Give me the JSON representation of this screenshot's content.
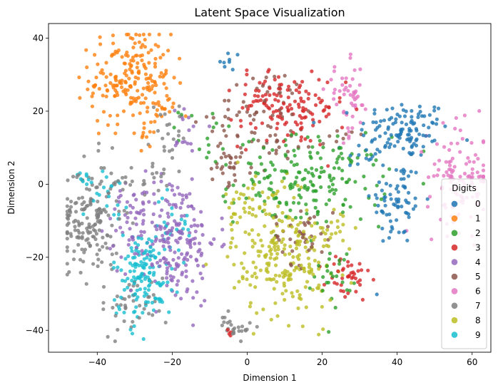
{
  "chart_data": {
    "type": "scatter",
    "title": "Latent Space Visualization",
    "xlabel": "Dimension 1",
    "ylabel": "Dimension 2",
    "xlim": [
      -53,
      65
    ],
    "ylim": [
      -46,
      44
    ],
    "xticks": [
      -40,
      -20,
      0,
      20,
      40,
      60
    ],
    "yticks": [
      -40,
      -20,
      0,
      20,
      40
    ],
    "xtick_labels": [
      "−40",
      "−20",
      "0",
      "20",
      "40",
      "60"
    ],
    "ytick_labels": [
      "−40",
      "−20",
      "0",
      "20",
      "40"
    ],
    "grid": false,
    "legend": {
      "title": "Digits",
      "placement": "lower-right"
    },
    "series": [
      {
        "name": "0",
        "color": "#1f77b4",
        "clusters": [
          {
            "cx": 42,
            "cy": 15,
            "sx": 6,
            "sy": 4,
            "n": 110
          },
          {
            "cx": 40,
            "cy": -5,
            "sx": 3.5,
            "sy": 6,
            "n": 70
          },
          {
            "cx": 32,
            "cy": 8,
            "sx": 3,
            "sy": 2,
            "n": 15
          },
          {
            "cx": -5,
            "cy": 33,
            "sx": 1.5,
            "sy": 2,
            "n": 8
          }
        ]
      },
      {
        "name": "1",
        "color": "#ff7f0e",
        "clusters": [
          {
            "cx": -31,
            "cy": 29,
            "sx": 5.5,
            "sy": 6.5,
            "n": 200
          },
          {
            "cx": -22,
            "cy": 20,
            "sx": 2,
            "sy": 1.2,
            "n": 10
          },
          {
            "cx": -27,
            "cy": 15,
            "sx": 1.5,
            "sy": 2.5,
            "n": 10
          }
        ]
      },
      {
        "name": "2",
        "color": "#2ca02c",
        "clusters": [
          {
            "cx": 17,
            "cy": 1,
            "sx": 10,
            "sy": 6,
            "n": 190
          },
          {
            "cx": 23,
            "cy": -25,
            "sx": 2.5,
            "sy": 4,
            "n": 25
          },
          {
            "cx": -10,
            "cy": 13,
            "sx": 4,
            "sy": 4,
            "n": 18
          }
        ]
      },
      {
        "name": "3",
        "color": "#d62728",
        "clusters": [
          {
            "cx": 12,
            "cy": 20,
            "sx": 7,
            "sy": 5,
            "n": 110
          },
          {
            "cx": 3,
            "cy": 24,
            "sx": 3,
            "sy": 3,
            "n": 30
          },
          {
            "cx": 27,
            "cy": -26,
            "sx": 3,
            "sy": 3.5,
            "n": 40
          },
          {
            "cx": -5,
            "cy": -40,
            "sx": 1,
            "sy": 0.8,
            "n": 4
          }
        ]
      },
      {
        "name": "4",
        "color": "#9467bd",
        "clusters": [
          {
            "cx": -20,
            "cy": -15,
            "sx": 6,
            "sy": 9,
            "n": 210
          },
          {
            "cx": -30,
            "cy": -8,
            "sx": 4,
            "sy": 4,
            "n": 30
          },
          {
            "cx": -17,
            "cy": 14,
            "sx": 2,
            "sy": 4,
            "n": 15
          }
        ]
      },
      {
        "name": "5",
        "color": "#8c564b",
        "clusters": [
          {
            "cx": 5,
            "cy": 18,
            "sx": 7,
            "sy": 7,
            "n": 80
          },
          {
            "cx": -6,
            "cy": 5,
            "sx": 3,
            "sy": 2.5,
            "n": 25
          },
          {
            "cx": 15,
            "cy": -14,
            "sx": 4,
            "sy": 4,
            "n": 40
          },
          {
            "cx": 24,
            "cy": 13,
            "sx": 2,
            "sy": 1.5,
            "n": 8
          }
        ]
      },
      {
        "name": "6",
        "color": "#e377c2",
        "clusters": [
          {
            "cx": 57,
            "cy": 2,
            "sx": 4.5,
            "sy": 7,
            "n": 120
          },
          {
            "cx": 27,
            "cy": 23,
            "sx": 3,
            "sy": 5,
            "n": 50
          }
        ]
      },
      {
        "name": "7",
        "color": "#7f7f7f",
        "clusters": [
          {
            "cx": -42,
            "cy": -10,
            "sx": 4,
            "sy": 8,
            "n": 170
          },
          {
            "cx": -30,
            "cy": -33,
            "sx": 4.5,
            "sy": 4,
            "n": 40
          },
          {
            "cx": -3,
            "cy": -39,
            "sx": 2.2,
            "sy": 1.8,
            "n": 25
          },
          {
            "cx": -22,
            "cy": 13,
            "sx": 3,
            "sy": 5,
            "n": 25
          },
          {
            "cx": -30,
            "cy": 1,
            "sx": 4,
            "sy": 2,
            "n": 20
          }
        ]
      },
      {
        "name": "8",
        "color": "#bcbd22",
        "clusters": [
          {
            "cx": 10,
            "cy": -20,
            "sx": 7,
            "sy": 8,
            "n": 220
          },
          {
            "cx": 2,
            "cy": -5,
            "sx": 4,
            "sy": 4,
            "n": 40
          },
          {
            "cx": 25,
            "cy": -12,
            "sx": 3,
            "sy": 3,
            "n": 15
          }
        ]
      },
      {
        "name": "9",
        "color": "#17becf",
        "clusters": [
          {
            "cx": -28,
            "cy": -25,
            "sx": 4,
            "sy": 6,
            "n": 140
          },
          {
            "cx": -20,
            "cy": -11,
            "sx": 3,
            "sy": 4,
            "n": 25
          },
          {
            "cx": -37,
            "cy": -3,
            "sx": 2.5,
            "sy": 3,
            "n": 20
          },
          {
            "cx": -43,
            "cy": 2,
            "sx": 1.5,
            "sy": 1.2,
            "n": 8
          }
        ]
      }
    ]
  }
}
